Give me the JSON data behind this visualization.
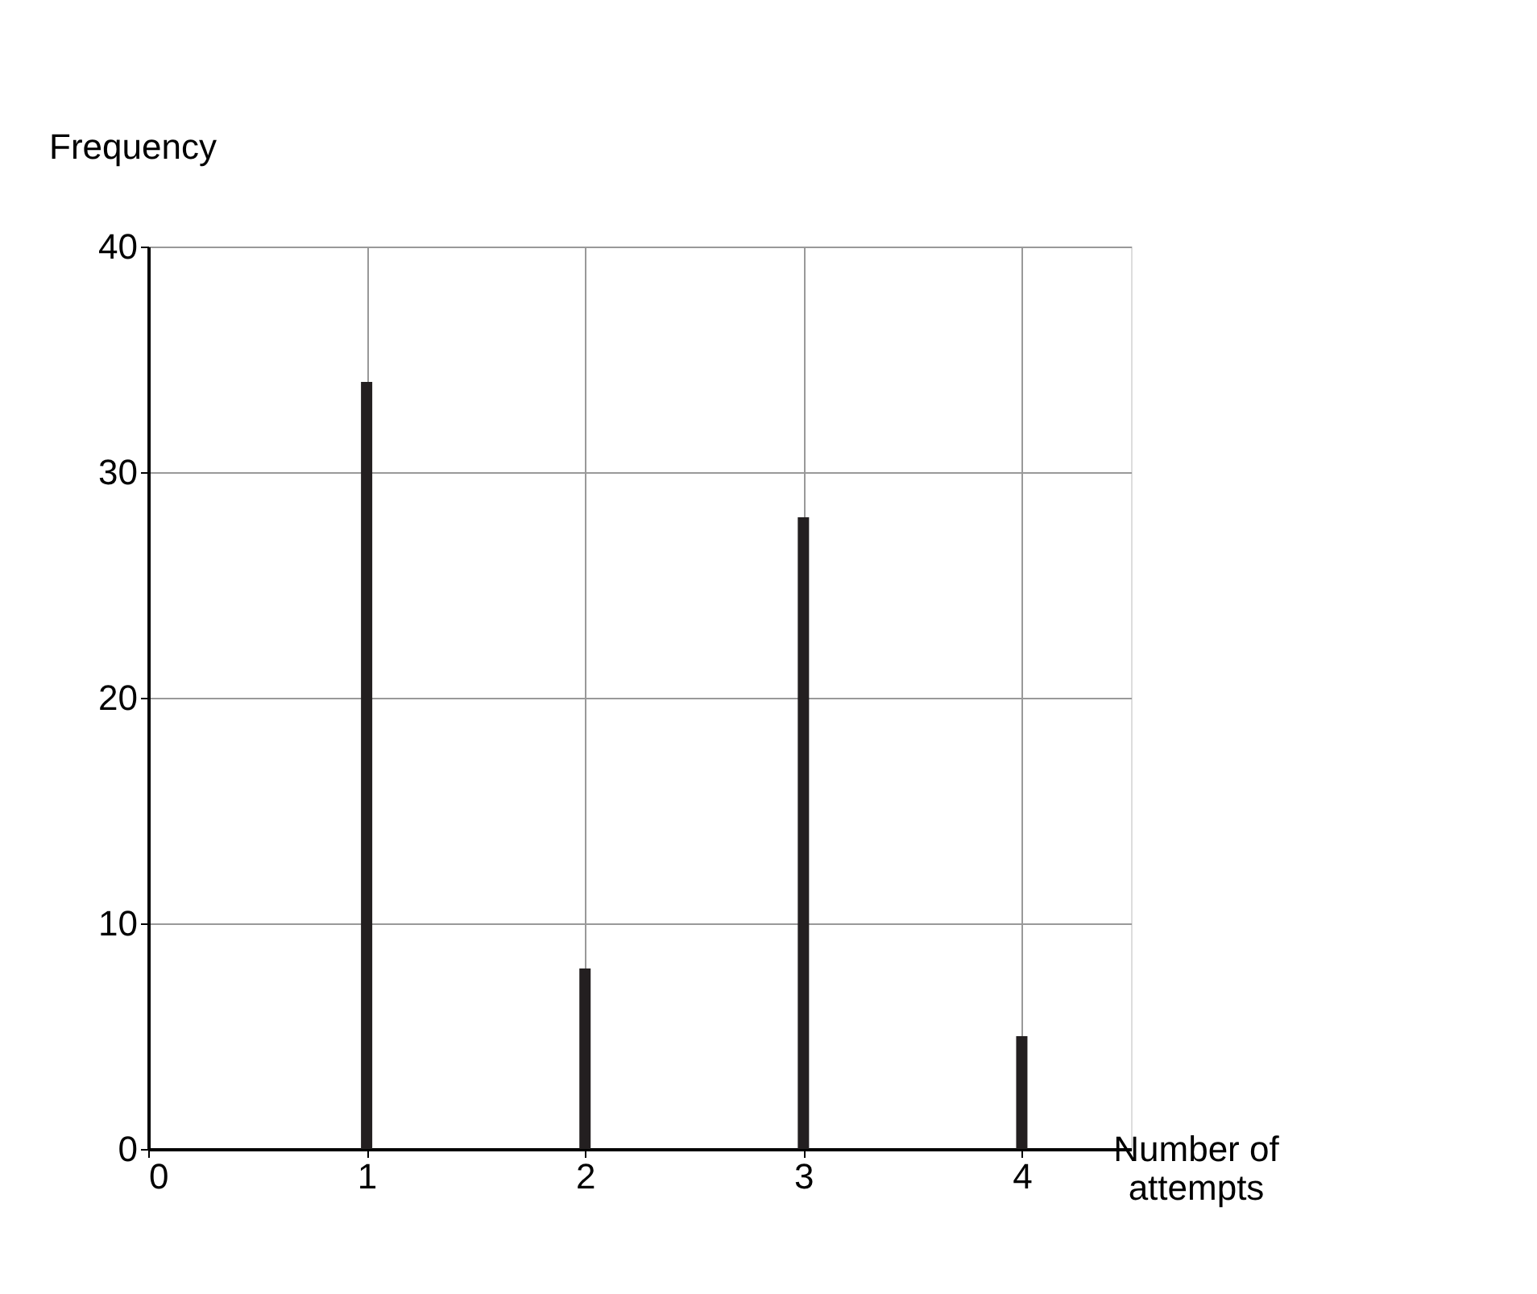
{
  "chart_data": {
    "type": "bar",
    "xlabel": "Number of attempts",
    "ylabel": "Frequency",
    "x": [
      1,
      2,
      3,
      4
    ],
    "values": [
      34,
      8,
      28,
      5
    ],
    "color": "#231f20",
    "xlim": [
      0,
      4.5
    ],
    "xticks": [
      0,
      1,
      2,
      3,
      4
    ],
    "ylim": [
      0,
      40
    ],
    "yticks": [
      0,
      10,
      20,
      30,
      40
    ],
    "grid": true
  }
}
